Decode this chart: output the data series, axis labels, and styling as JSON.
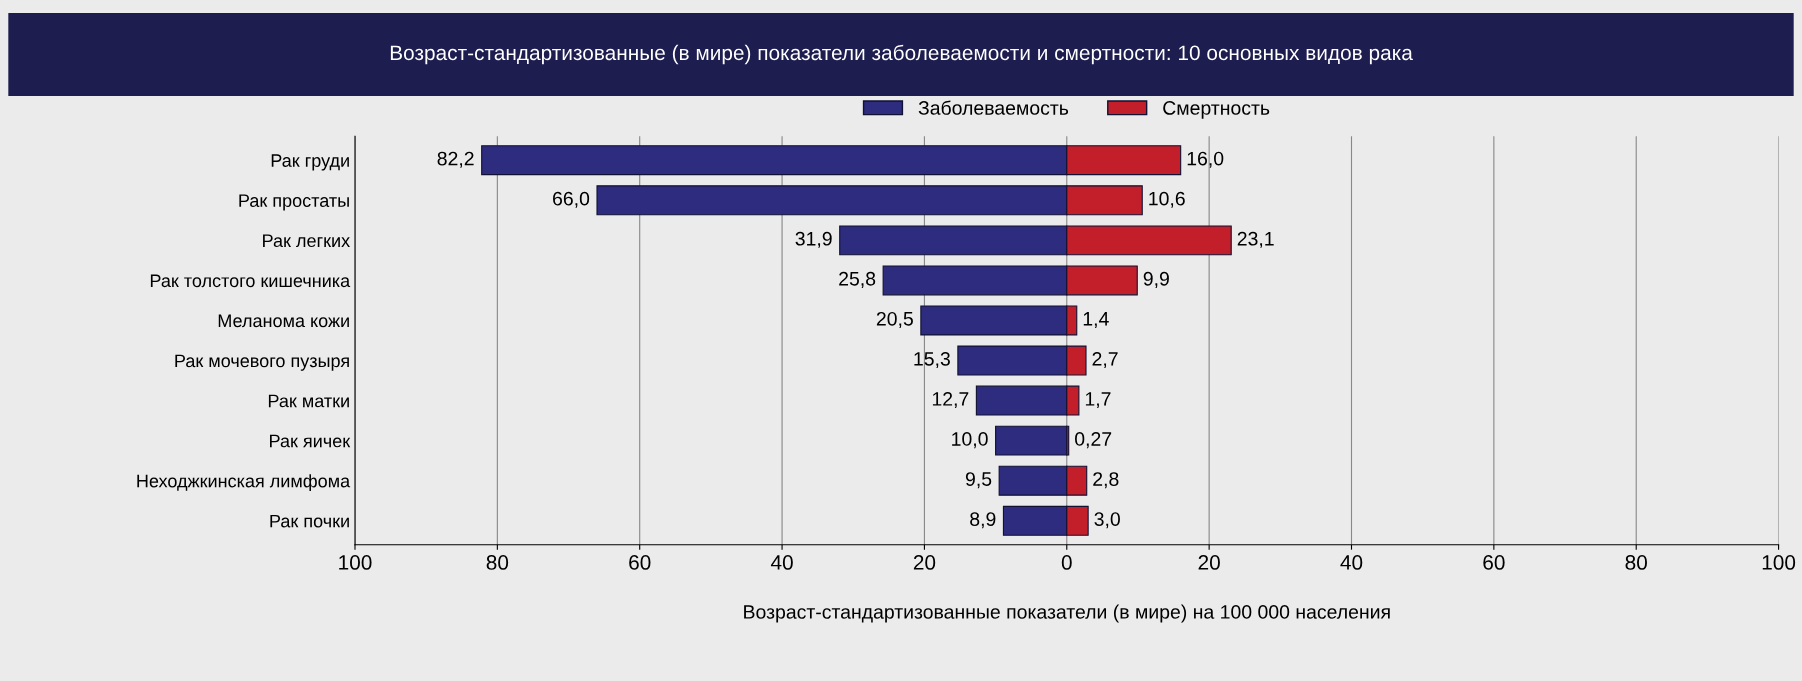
{
  "chart_data": {
    "type": "bar",
    "orientation": "horizontal",
    "title": "Возраст-стандартизованные (в мире) показатели заболеваемости и смертности: 10 основных видов рака",
    "xlabel": "Возраст-стандартизованные показатели (в мире) на 100 000 населения",
    "categories": [
      "Рак груди",
      "Рак простаты",
      "Рак легких",
      "Рак толстого кишечника",
      "Меланома кожи",
      "Рак мочевого пузыря",
      "Рак матки",
      "Рак яичек",
      "Неходжкинская лимфома",
      "Рак почки"
    ],
    "series": [
      {
        "name": "Заболеваемость",
        "color": "#2e2c7e",
        "base": [
          -82.2,
          -66.0,
          -31.9,
          -25.8,
          -20.5,
          -15.3,
          -12.7,
          -10.0,
          -9.5,
          -8.9
        ],
        "values": [
          82.2,
          66.0,
          31.9,
          25.8,
          20.5,
          15.3,
          12.7,
          10.0,
          9.5,
          8.9
        ],
        "value_labels": [
          "82,2",
          "66,0",
          "31,9",
          "25,8",
          "20,5",
          "15,3",
          "12,7",
          "10,0",
          "9,5",
          "8,9"
        ]
      },
      {
        "name": "Смертность",
        "color": "#c21f2b",
        "values": [
          16.0,
          10.6,
          23.1,
          9.9,
          1.4,
          2.7,
          1.7,
          0.27,
          2.8,
          3.0
        ],
        "value_labels": [
          "16,0",
          "10,6",
          "23,1",
          "9,9",
          "1,4",
          "2,7",
          "1,7",
          "0,27",
          "2,8",
          "3,0"
        ]
      }
    ],
    "xlim": [
      -100,
      100
    ],
    "xticks": [
      {
        "value": -100,
        "label": "100"
      },
      {
        "value": -80,
        "label": "80"
      },
      {
        "value": -60,
        "label": "60"
      },
      {
        "value": -40,
        "label": "40"
      },
      {
        "value": -20,
        "label": "20"
      },
      0,
      20,
      40,
      60,
      80,
      100
    ],
    "stacked": true,
    "grid": "x",
    "legend": "top"
  }
}
